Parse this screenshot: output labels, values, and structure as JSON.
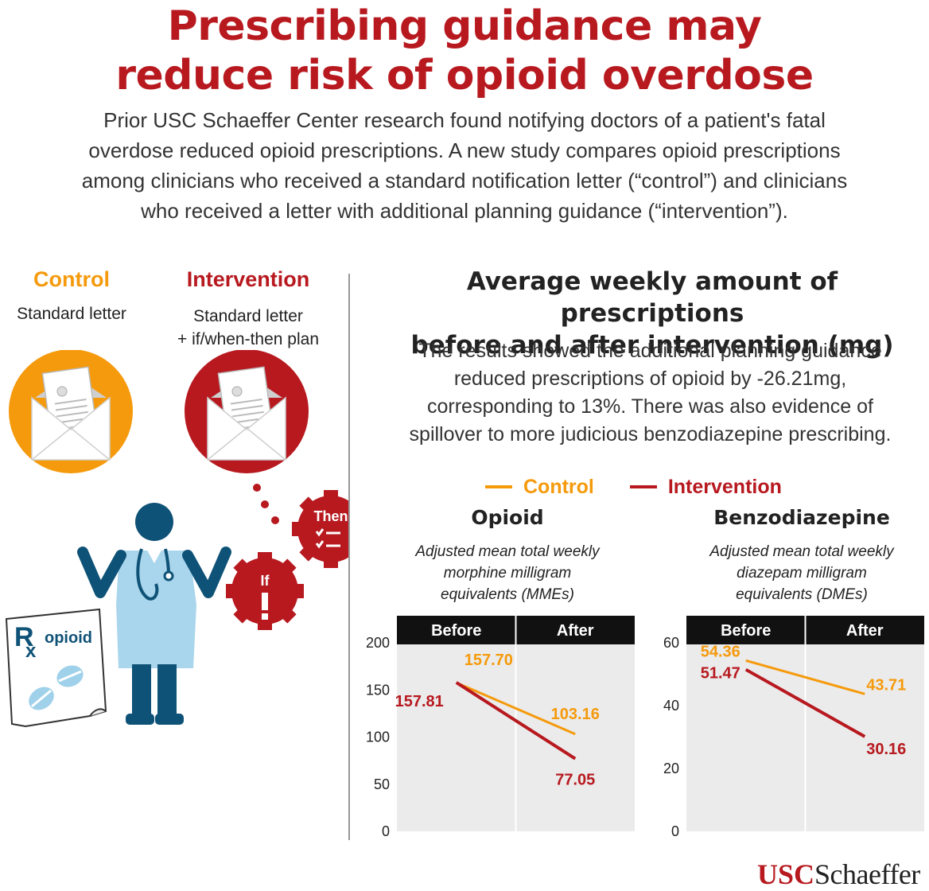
{
  "title": {
    "line1": "Prescribing guidance may",
    "line2": "reduce risk of opioid overdose"
  },
  "intro": {
    "line1": "Prior USC Schaeffer Center research found notifying doctors of a patient's fatal",
    "line2": "overdose reduced opioid prescriptions. A new study compares opioid prescriptions",
    "line3": "among clinicians who received a standard notification letter (“control”) and clinicians",
    "line4": "who received a letter with additional planning guidance (“intervention”)."
  },
  "groups": {
    "control": {
      "label": "Control",
      "desc": "Standard letter"
    },
    "intervention": {
      "label": "Intervention",
      "desc_line1": "Standard letter",
      "desc_line2": "+ if/when-then plan"
    }
  },
  "illustration": {
    "then_label": "Then",
    "if_label": "If",
    "rx_symbol": "R",
    "rx_x": "x",
    "rx_label": "opioid"
  },
  "colors": {
    "control": "#f59a0c",
    "intervention": "#b7191f",
    "panel_bg": "#ebebeb",
    "header_bg": "#111111"
  },
  "chart_heading": {
    "line1": "Average weekly amount of prescriptions",
    "line2": "before and after intervention (mg)"
  },
  "chart_description": {
    "line1": "The results showed the additional planning guidance",
    "line2": "reduced prescriptions of opioid by -26.21mg,",
    "line3": "corresponding to 13%. There was also evidence of",
    "line4": "spillover to more judicious benzodiazepine prescribing."
  },
  "legend": {
    "control": "Control",
    "intervention": "Intervention"
  },
  "chart_data": [
    {
      "type": "line",
      "title": "Opioid",
      "subtitle_line1": "Adjusted mean total weekly",
      "subtitle_line2": "morphine milligram",
      "subtitle_line3": "equivalents (MMEs)",
      "categories": [
        "Before",
        "After"
      ],
      "ylim": [
        0,
        200
      ],
      "yticks": [
        0,
        50,
        100,
        150,
        200
      ],
      "series": [
        {
          "name": "Control",
          "values": [
            157.7,
            103.16
          ],
          "labels": [
            "157.70",
            "103.16"
          ]
        },
        {
          "name": "Intervention",
          "values": [
            157.81,
            77.05
          ],
          "labels": [
            "157.81",
            "77.05"
          ]
        }
      ]
    },
    {
      "type": "line",
      "title": "Benzodiazepine",
      "subtitle_line1": "Adjusted mean total weekly",
      "subtitle_line2": "diazepam milligram",
      "subtitle_line3": "equivalents (DMEs)",
      "categories": [
        "Before",
        "After"
      ],
      "ylim": [
        0,
        60
      ],
      "yticks": [
        0,
        20,
        40,
        60
      ],
      "series": [
        {
          "name": "Control",
          "values": [
            54.36,
            43.71
          ],
          "labels": [
            "54.36",
            "43.71"
          ]
        },
        {
          "name": "Intervention",
          "values": [
            51.47,
            30.16
          ],
          "labels": [
            "51.47",
            "30.16"
          ]
        }
      ]
    }
  ],
  "logo": {
    "usc": "USC",
    "schaeffer": "Schaeffer"
  }
}
